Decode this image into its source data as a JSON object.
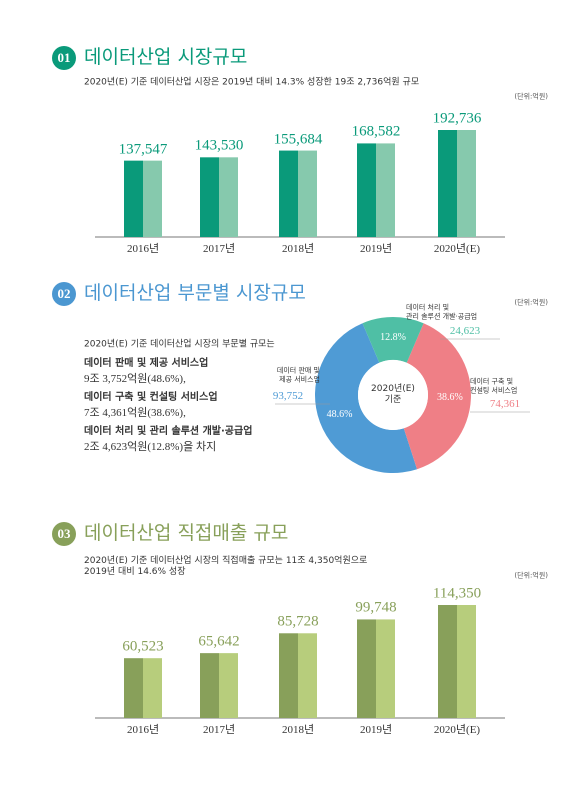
{
  "chart_data": [
    {
      "type": "bar",
      "badge": "01",
      "title": "데이터산업 시장규모",
      "theme_color": "#0a9a7a",
      "subtitle": "2020년(E) 기준 데이터산업 시장은 2019년 대비 14.3% 성장한 19조 2,736억원 규모",
      "unit": "(단위:억원)",
      "categories": [
        "2016년",
        "2017년",
        "2018년",
        "2019년",
        "2020년(E)"
      ],
      "values": [
        137547,
        143530,
        155684,
        168582,
        192736
      ],
      "value_labels": [
        "137,547",
        "143,530",
        "155,684",
        "168,582",
        "192,736"
      ],
      "colors": [
        "#0a9a7a",
        "#86c9ad"
      ]
    },
    {
      "type": "donut",
      "badge": "02",
      "title": "데이터산업 부문별 시장규모",
      "theme_color": "#4b97d1",
      "intro": "2020년(E) 기준 데이터산업 시장의 부문별 규모는",
      "summary": [
        {
          "name": "데이터 판매 및 제공 서비스업",
          "text": "9조 3,752억원(48.6%),"
        },
        {
          "name": "데이터 구축 및 컨설팅 서비스업",
          "text": "7조 4,361억원(38.6%),"
        },
        {
          "name": "데이터 처리 및 관리 솔루션 개발·공급업",
          "text": "2조 4,623억원(12.8%)을 차지"
        }
      ],
      "unit": "(단위:억원)",
      "center_label": "2020년(E)\n기준",
      "categories": [
        "데이터 판매 및\n제공 서비스업",
        "데이터 구축 및\n컨설팅 서비스업",
        "데이터 처리 및\n관리 솔루션 개발·공급업"
      ],
      "values": [
        48.6,
        38.6,
        12.8
      ],
      "value_labels": [
        "48.6%",
        "38.6%",
        "12.8%"
      ],
      "amount_labels": [
        "93,752",
        "74,361",
        "24,623"
      ],
      "colors": [
        "#4f9bd5",
        "#ef7f86",
        "#4fbfa5"
      ]
    },
    {
      "type": "bar",
      "badge": "03",
      "title": "데이터산업 직접매출 규모",
      "theme_color": "#88a05a",
      "subtitle": "2020년(E) 기준 데이터산업 시장의 직접매출 규모는 11조 4,350억원으로\n2019년 대비 14.6% 성장",
      "unit": "(단위:억원)",
      "categories": [
        "2016년",
        "2017년",
        "2018년",
        "2019년",
        "2020년(E)"
      ],
      "values": [
        60523,
        65642,
        85728,
        99748,
        114350
      ],
      "value_labels": [
        "60,523",
        "65,642",
        "85,728",
        "99,748",
        "114,350"
      ],
      "colors": [
        "#88a05a",
        "#b7cd7c"
      ]
    }
  ]
}
